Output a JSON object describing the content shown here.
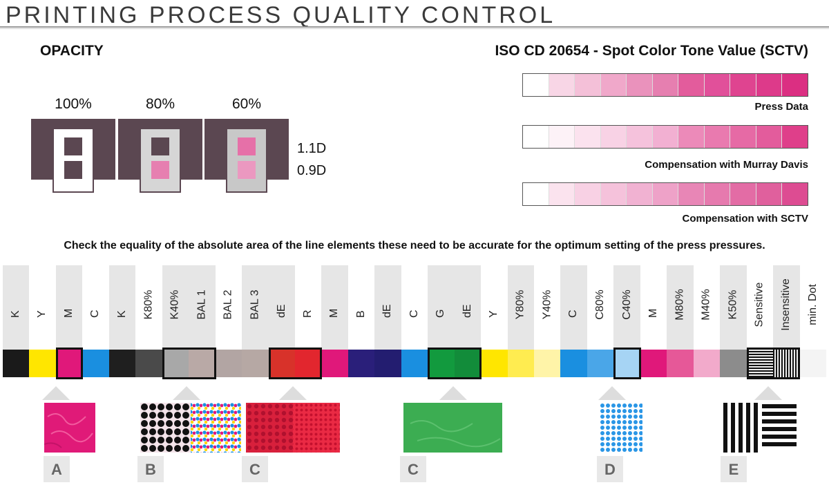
{
  "header": {
    "title": "PRINTING PROCESS QUALITY CONTROL"
  },
  "opacity": {
    "heading": "OPACITY",
    "percentages": [
      "100%",
      "80%",
      "60%"
    ],
    "densities": [
      "1.1D",
      "0.9D"
    ]
  },
  "sctv": {
    "heading": "ISO CD 20654 - Spot Color Tone Value (SCTV)",
    "strips": [
      {
        "label": "Press Data",
        "colors": [
          "#ffffff",
          "#f8d6e6",
          "#f4c0d8",
          "#f0a8ca",
          "#ea92bc",
          "#e67fb0",
          "#e35c9c",
          "#e1509a",
          "#df4490",
          "#dd3a8a",
          "#db2f82"
        ]
      },
      {
        "label": "Compensation with Murray Davis",
        "colors": [
          "#ffffff",
          "#fdf2f7",
          "#fbe2ee",
          "#f8d2e5",
          "#f5c2dc",
          "#f2b0d2",
          "#ec8ab9",
          "#e97aaf",
          "#e66aa5",
          "#e35c9c",
          "#df3f8a"
        ]
      },
      {
        "label": "Compensation with SCTV",
        "colors": [
          "#ffffff",
          "#fbe3ee",
          "#f8d1e4",
          "#f5c2db",
          "#f1b2d2",
          "#eea2c8",
          "#e886b6",
          "#e67aae",
          "#e36ca5",
          "#e0609d",
          "#dd4c92"
        ]
      }
    ]
  },
  "note": "Check the equality of the absolute area of the line elements these need to be accurate for the optimum setting of the press pressures.",
  "control_bar": {
    "columns": [
      {
        "label": "K",
        "color": "#1a1a1a",
        "bg": "#e6e6e6"
      },
      {
        "label": "Y",
        "color": "#ffe600",
        "bg": "#ffffff"
      },
      {
        "label": "M",
        "color": "#e0187a",
        "bg": "#e6e6e6"
      },
      {
        "label": "C",
        "color": "#1a8fe0",
        "bg": "#ffffff"
      },
      {
        "label": "K",
        "color": "#1f1f1f",
        "bg": "#e6e6e6"
      },
      {
        "label": "K80%",
        "color": "#4a4a4a",
        "bg": "#ffffff"
      },
      {
        "label": "K40%",
        "color": "#a8a8a8",
        "bg": "#e6e6e6"
      },
      {
        "label": "BAL 1",
        "color": "#b9a9a6",
        "bg": "#e6e6e6"
      },
      {
        "label": "BAL 2",
        "color": "#b2a5a3",
        "bg": "#ffffff"
      },
      {
        "label": "BAL 3",
        "color": "#b6a8a4",
        "bg": "#e6e6e6"
      },
      {
        "label": "dE",
        "color": "#d8322a",
        "bg": "#e6e6e6"
      },
      {
        "label": "R",
        "color": "#e2262e",
        "bg": "#ffffff"
      },
      {
        "label": "M",
        "color": "#e0187a",
        "bg": "#e6e6e6"
      },
      {
        "label": "B",
        "color": "#2a1f7a",
        "bg": "#ffffff"
      },
      {
        "label": "dE",
        "color": "#231d70",
        "bg": "#e6e6e6"
      },
      {
        "label": "C",
        "color": "#1a8fe0",
        "bg": "#ffffff"
      },
      {
        "label": "G",
        "color": "#129a3e",
        "bg": "#e6e6e6"
      },
      {
        "label": "dE",
        "color": "#128c3a",
        "bg": "#e6e6e6"
      },
      {
        "label": "Y",
        "color": "#ffe600",
        "bg": "#ffffff"
      },
      {
        "label": "Y80%",
        "color": "#ffec50",
        "bg": "#e6e6e6"
      },
      {
        "label": "Y40%",
        "color": "#fff4a8",
        "bg": "#ffffff"
      },
      {
        "label": "C",
        "color": "#1a8fe0",
        "bg": "#e6e6e6"
      },
      {
        "label": "C80%",
        "color": "#4aa6e8",
        "bg": "#ffffff"
      },
      {
        "label": "C40%",
        "color": "#a6d4f4",
        "bg": "#e6e6e6"
      },
      {
        "label": "M",
        "color": "#e0187a",
        "bg": "#ffffff"
      },
      {
        "label": "M80%",
        "color": "#e65898",
        "bg": "#e6e6e6"
      },
      {
        "label": "M40%",
        "color": "#f2aacb",
        "bg": "#ffffff"
      },
      {
        "label": "K50%",
        "color": "#8c8c8c",
        "bg": "#e6e6e6"
      },
      {
        "label": "Sensitive",
        "color": "#777777",
        "bg": "#ffffff"
      },
      {
        "label": "Insensitive",
        "color": "#777777",
        "bg": "#e6e6e6"
      },
      {
        "label": "min. Dot",
        "color": "#f4f4f4",
        "bg": "#ffffff"
      }
    ],
    "samples": [
      {
        "letter": "A"
      },
      {
        "letter": "B"
      },
      {
        "letter": "C"
      },
      {
        "letter": "C"
      },
      {
        "letter": "D"
      },
      {
        "letter": "E"
      }
    ]
  }
}
